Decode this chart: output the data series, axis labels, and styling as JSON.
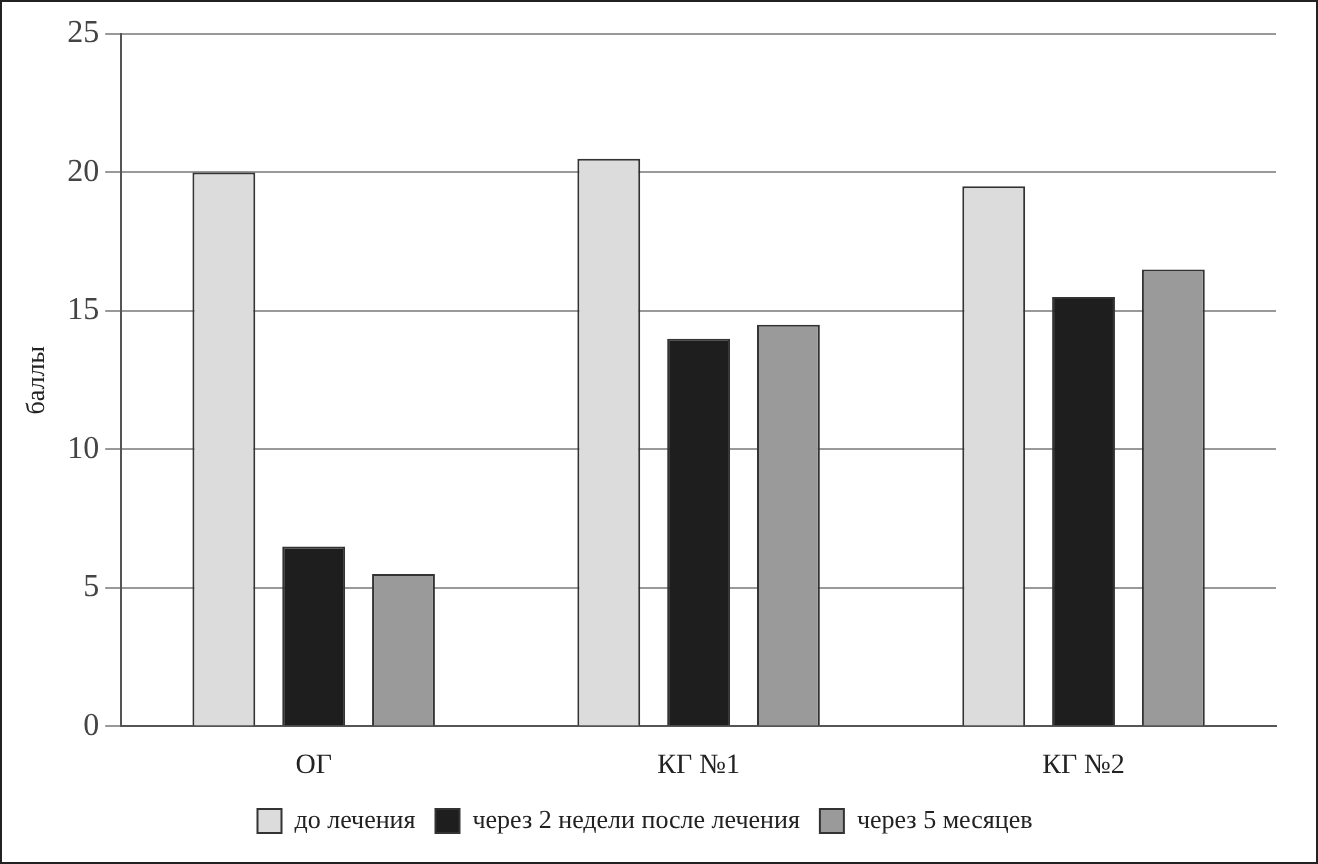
{
  "chart_data": {
    "type": "bar",
    "ylabel": "баллы",
    "categories": [
      "ОГ",
      "КГ №1",
      "КГ №2"
    ],
    "series": [
      {
        "name": "до лечения",
        "color": "#dcdcdc",
        "values": [
          20,
          20.5,
          19.5
        ]
      },
      {
        "name": "через 2 недели после лечения",
        "color": "#1e1e1e",
        "values": [
          6.5,
          14,
          15.5
        ]
      },
      {
        "name": "через 5 месяцев",
        "color": "#9a9a9a",
        "values": [
          5.5,
          14.5,
          16.5
        ]
      }
    ],
    "ylim": [
      0,
      25
    ],
    "yticks": [
      0,
      5,
      10,
      15,
      20,
      25
    ],
    "grid": "y",
    "legend": "bottom"
  }
}
